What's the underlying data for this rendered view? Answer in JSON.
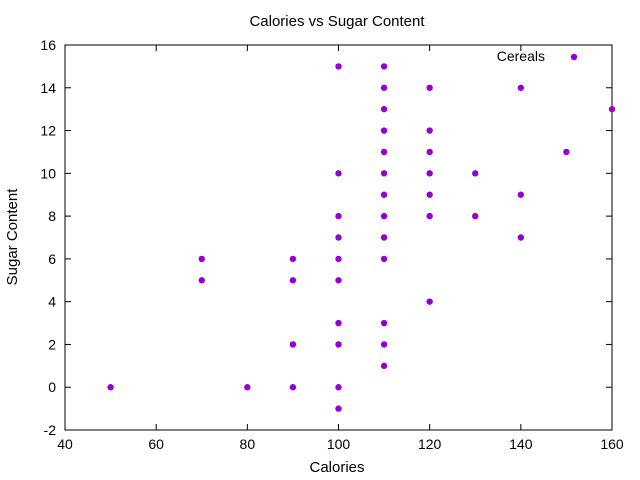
{
  "chart_data": {
    "type": "scatter",
    "title": "Calories vs Sugar Content",
    "xlabel": "Calories",
    "ylabel": "Sugar Content",
    "xlim": [
      40,
      160
    ],
    "ylim": [
      -2,
      16
    ],
    "xticks": [
      40,
      60,
      80,
      100,
      120,
      140,
      160
    ],
    "yticks": [
      -2,
      0,
      2,
      4,
      6,
      8,
      10,
      12,
      14,
      16
    ],
    "grid": false,
    "legend_position": "top-right",
    "series": [
      {
        "name": "Cereals",
        "color": "#9400d3",
        "marker": "filled-circle",
        "points": [
          {
            "x": 50,
            "y": 0
          },
          {
            "x": 70,
            "y": 6
          },
          {
            "x": 70,
            "y": 5
          },
          {
            "x": 80,
            "y": 0
          },
          {
            "x": 90,
            "y": 6
          },
          {
            "x": 90,
            "y": 5
          },
          {
            "x": 90,
            "y": 2
          },
          {
            "x": 90,
            "y": 0
          },
          {
            "x": 100,
            "y": 15
          },
          {
            "x": 100,
            "y": 10
          },
          {
            "x": 100,
            "y": 8
          },
          {
            "x": 100,
            "y": 7
          },
          {
            "x": 100,
            "y": 6
          },
          {
            "x": 100,
            "y": 5
          },
          {
            "x": 100,
            "y": 3
          },
          {
            "x": 100,
            "y": 2
          },
          {
            "x": 100,
            "y": 0
          },
          {
            "x": 100,
            "y": -1
          },
          {
            "x": 110,
            "y": 15
          },
          {
            "x": 110,
            "y": 14
          },
          {
            "x": 110,
            "y": 13
          },
          {
            "x": 110,
            "y": 12
          },
          {
            "x": 110,
            "y": 11
          },
          {
            "x": 110,
            "y": 10
          },
          {
            "x": 110,
            "y": 9
          },
          {
            "x": 110,
            "y": 8
          },
          {
            "x": 110,
            "y": 7
          },
          {
            "x": 110,
            "y": 6
          },
          {
            "x": 110,
            "y": 3
          },
          {
            "x": 110,
            "y": 2
          },
          {
            "x": 110,
            "y": 1
          },
          {
            "x": 120,
            "y": 14
          },
          {
            "x": 120,
            "y": 12
          },
          {
            "x": 120,
            "y": 11
          },
          {
            "x": 120,
            "y": 10
          },
          {
            "x": 120,
            "y": 9
          },
          {
            "x": 120,
            "y": 8
          },
          {
            "x": 120,
            "y": 4
          },
          {
            "x": 130,
            "y": 10
          },
          {
            "x": 130,
            "y": 8
          },
          {
            "x": 140,
            "y": 14
          },
          {
            "x": 140,
            "y": 9
          },
          {
            "x": 140,
            "y": 7
          },
          {
            "x": 150,
            "y": 11
          },
          {
            "x": 160,
            "y": 13
          }
        ]
      }
    ]
  }
}
